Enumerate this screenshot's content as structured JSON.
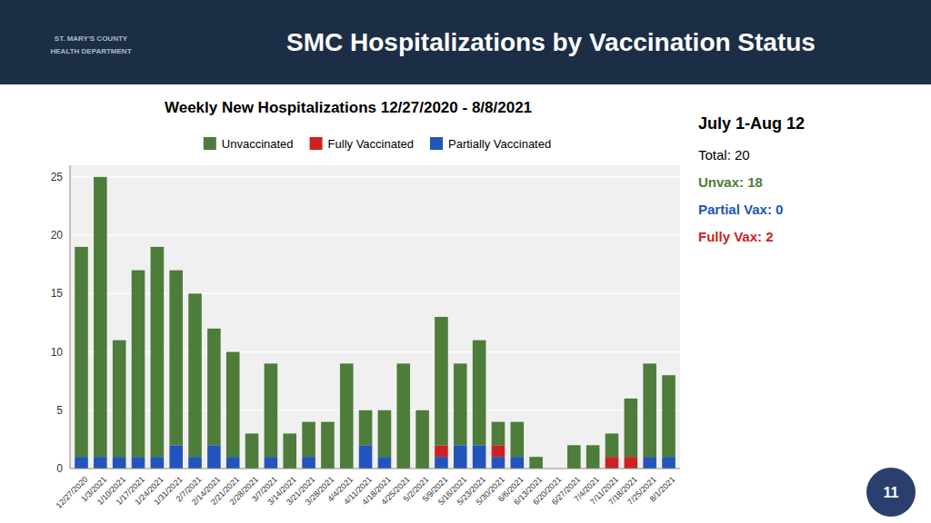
{
  "chart_data": {
    "type": "bar",
    "stacked": true,
    "title": "SMC Hospitalizations by Vaccination Status",
    "subtitle": "Weekly New Hospitalizations 12/27/2020 - 8/8/2021",
    "categories": [
      "12/27/2020",
      "1/3/2021",
      "1/10/2021",
      "1/17/2021",
      "1/24/2021",
      "1/31/2021",
      "2/7/2021",
      "2/14/2021",
      "2/21/2021",
      "2/28/2021",
      "3/7/2021",
      "3/14/2021",
      "3/21/2021",
      "3/28/2021",
      "4/4/2021",
      "4/11/2021",
      "4/18/2021",
      "4/25/2021",
      "5/2/2021",
      "5/9/2021",
      "5/16/2021",
      "5/23/2021",
      "5/30/2021",
      "6/6/2021",
      "6/13/2021",
      "6/20/2021",
      "6/27/2021",
      "7/4/2021",
      "7/11/2021",
      "7/18/2021",
      "7/25/2021",
      "8/1/2021"
    ],
    "series": [
      {
        "name": "Unvaccinated",
        "color": "#4e7c3a",
        "values": [
          18,
          24,
          10,
          16,
          18,
          15,
          14,
          10,
          9,
          3,
          8,
          3,
          3,
          4,
          9,
          3,
          4,
          9,
          5,
          11,
          7,
          9,
          2,
          3,
          1,
          0,
          2,
          2,
          2,
          5,
          8,
          7
        ]
      },
      {
        "name": "Fully Vaccinated",
        "color": "#cc2222",
        "values": [
          0,
          0,
          0,
          0,
          0,
          0,
          0,
          0,
          0,
          0,
          0,
          0,
          0,
          0,
          0,
          0,
          0,
          0,
          0,
          1,
          0,
          0,
          1,
          0,
          0,
          0,
          0,
          0,
          1,
          1,
          0,
          0
        ]
      },
      {
        "name": "Partially Vaccinated",
        "color": "#2255bb",
        "values": [
          1,
          1,
          1,
          1,
          1,
          2,
          1,
          2,
          1,
          0,
          1,
          0,
          1,
          0,
          0,
          2,
          1,
          0,
          0,
          1,
          2,
          2,
          1,
          1,
          0,
          0,
          0,
          0,
          0,
          0,
          1,
          1
        ]
      }
    ],
    "ylim": [
      0,
      26
    ],
    "yticks": [
      0,
      5,
      10,
      15,
      20,
      25
    ],
    "grid": true,
    "legend": "top",
    "annotations": [
      {
        "text": "July 1-Aug 12"
      },
      {
        "text": "Total: 20"
      },
      {
        "text": "Unvax: 18",
        "color": "#4e7c3a"
      },
      {
        "text": "Partial Vax: 0",
        "color": "#2255bb"
      },
      {
        "text": "Fully Vax: 2",
        "color": "#cc2222"
      },
      {
        "text": "ST. MARY'S COUNTY"
      },
      {
        "text": "HEALTH DEPARTMENT"
      },
      {
        "text": "11"
      }
    ]
  }
}
